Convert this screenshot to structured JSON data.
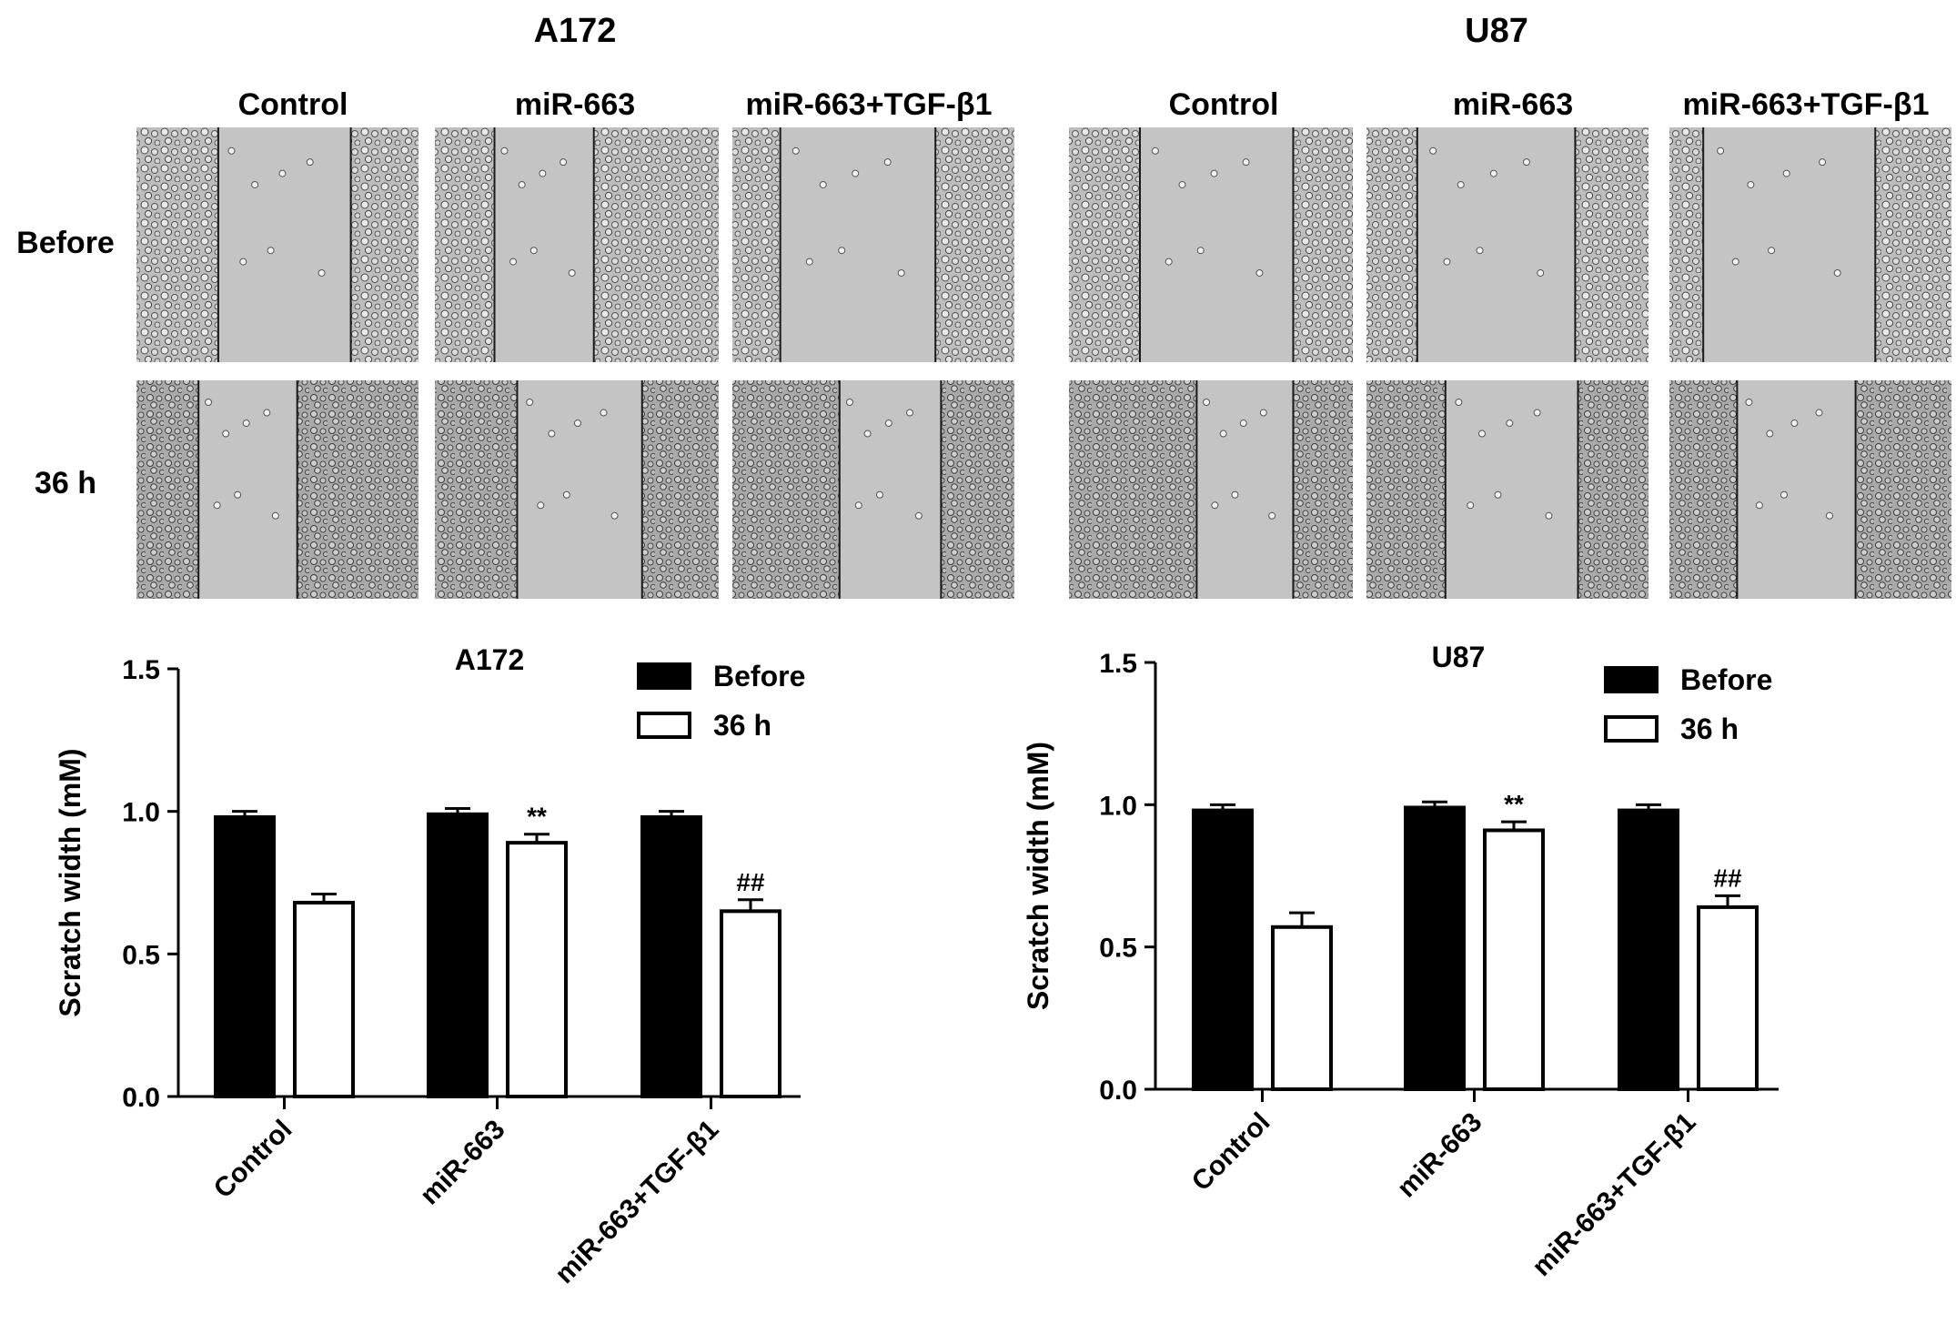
{
  "figure": {
    "panels": [
      {
        "title": "A172",
        "column_labels": [
          "Control",
          "miR-663",
          "miR-663+TGF-β1"
        ]
      },
      {
        "title": "U87",
        "column_labels": [
          "Control",
          "miR-663",
          "miR-663+TGF-β1"
        ]
      }
    ],
    "row_labels": [
      "Before",
      "36 h"
    ]
  },
  "chart_data": [
    {
      "type": "bar",
      "title": "A172",
      "ylabel": "Scratch width (mM)",
      "xlabel": "",
      "ylim": [
        0,
        1.5
      ],
      "yticks": [
        "0.0",
        "0.5",
        "1.0",
        "1.5"
      ],
      "categories": [
        "Control",
        "miR-663",
        "miR-663+TGF-β1"
      ],
      "series": [
        {
          "name": "Before",
          "values": [
            0.98,
            0.99,
            0.98
          ],
          "errors": [
            0.02,
            0.02,
            0.02
          ],
          "fill": "#000000"
        },
        {
          "name": "36 h",
          "values": [
            0.68,
            0.89,
            0.65
          ],
          "errors": [
            0.03,
            0.03,
            0.04
          ],
          "fill": "#ffffff"
        }
      ],
      "annotations": [
        "",
        "**",
        "##"
      ],
      "legend_position": "top-right"
    },
    {
      "type": "bar",
      "title": "U87",
      "ylabel": "Scratch width (mM)",
      "xlabel": "",
      "ylim": [
        0,
        1.5
      ],
      "yticks": [
        "0.0",
        "0.5",
        "1.0",
        "1.5"
      ],
      "categories": [
        "Control",
        "miR-663",
        "miR-663+TGF-β1"
      ],
      "series": [
        {
          "name": "Before",
          "values": [
            0.98,
            0.99,
            0.98
          ],
          "errors": [
            0.02,
            0.02,
            0.02
          ],
          "fill": "#000000"
        },
        {
          "name": "36 h",
          "values": [
            0.57,
            0.91,
            0.64
          ],
          "errors": [
            0.05,
            0.03,
            0.04
          ],
          "fill": "#ffffff"
        }
      ],
      "annotations": [
        "",
        "**",
        "##"
      ],
      "legend_position": "top-right"
    }
  ]
}
